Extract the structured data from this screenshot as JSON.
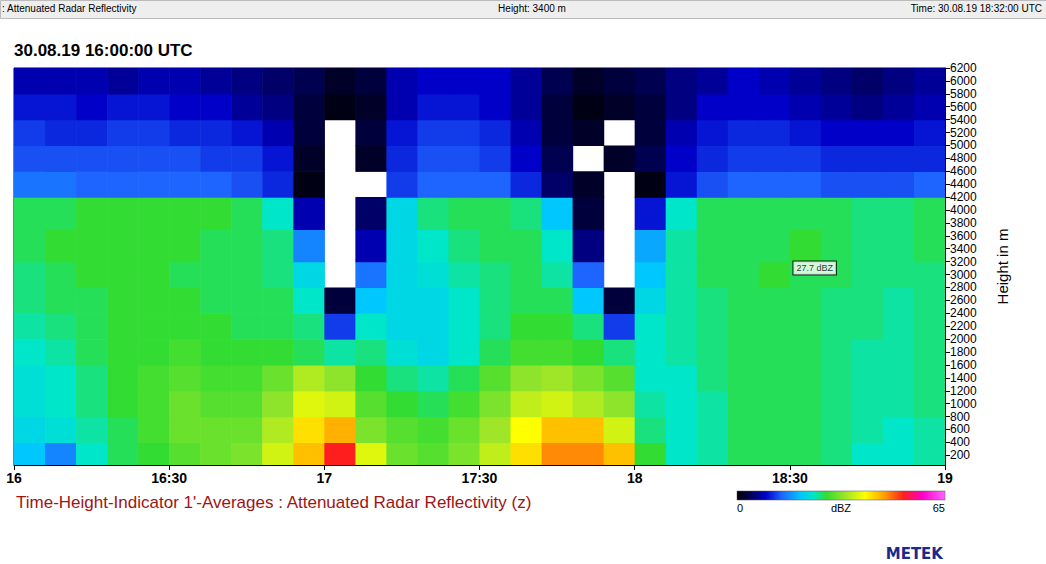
{
  "chart_data": {
    "type": "heatmap",
    "header": [
      ": Attenuated Radar Reflectivity",
      "Height: 3400 m",
      "Time: 30.08.19 18:32:00 UTC"
    ],
    "title": "30.08.19 16:00:00 UTC",
    "caption": "Time-Height-Indicator 1'-Averages : Attenuated Radar Reflectivity (z)",
    "ylabel": "Height in m",
    "brand": "METEK",
    "x_edges": [
      16,
      16.1,
      16.2,
      16.3,
      16.4,
      16.5,
      16.6,
      16.7,
      16.8,
      16.9,
      17,
      17.1,
      17.2,
      17.3,
      17.4,
      17.5,
      17.6,
      17.7,
      17.8,
      17.9,
      18,
      18.1,
      18.2,
      18.3,
      18.4,
      18.5,
      18.6,
      18.7,
      18.8,
      18.9,
      19
    ],
    "y_edges": [
      50,
      400,
      800,
      1200,
      1600,
      2000,
      2400,
      2800,
      3200,
      3700,
      4200,
      4600,
      5000,
      5400,
      5800,
      6200
    ],
    "cells": [
      [
        20,
        16,
        24,
        27,
        28,
        30,
        31,
        32,
        37,
        44,
        52,
        38,
        31,
        30,
        32,
        36,
        42,
        47,
        47,
        44,
        28,
        24,
        25,
        27,
        27,
        27,
        26,
        24,
        24,
        25
      ],
      [
        22,
        23,
        25,
        27,
        29,
        31,
        31,
        31,
        35,
        42,
        45,
        32,
        30,
        29,
        31,
        34,
        40,
        44,
        44,
        37,
        26,
        24,
        25,
        27,
        27,
        27,
        26,
        25,
        24,
        25
      ],
      [
        23,
        24,
        26,
        28,
        29,
        31,
        30,
        30,
        33,
        38,
        37,
        30,
        28,
        27,
        29,
        32,
        36,
        37,
        35,
        33,
        25,
        24,
        25,
        27,
        27,
        27,
        26,
        25,
        25,
        26
      ],
      [
        23,
        24,
        26,
        28,
        29,
        30,
        29,
        29,
        31,
        35,
        33,
        28,
        26,
        25,
        27,
        30,
        33,
        34,
        32,
        30,
        24,
        24,
        26,
        27,
        27,
        27,
        26,
        25,
        25,
        26
      ],
      [
        24,
        25,
        27,
        28,
        28,
        29,
        28,
        28,
        28,
        27,
        25,
        26,
        23,
        22,
        24,
        27,
        29,
        29,
        28,
        26,
        24,
        25,
        26,
        27,
        27,
        27,
        26,
        25,
        25,
        26
      ],
      [
        25,
        26,
        27,
        28,
        28,
        28,
        28,
        27,
        27,
        26,
        12,
        24,
        22,
        22,
        24,
        26,
        28,
        28,
        26,
        12,
        24,
        25,
        26,
        27,
        27,
        27,
        26,
        26,
        25,
        26
      ],
      [
        26,
        27,
        27,
        28,
        28,
        28,
        27,
        27,
        27,
        24,
        3,
        20,
        22,
        22,
        24,
        26,
        27,
        27,
        20,
        3,
        22,
        25,
        26,
        27,
        27,
        27,
        26,
        26,
        25,
        26
      ],
      [
        26,
        27,
        28,
        28,
        28,
        27,
        27,
        27,
        26,
        22,
        null,
        15,
        22,
        23,
        25,
        26,
        27,
        25,
        14,
        null,
        20,
        25,
        27,
        27,
        28,
        27,
        27,
        26,
        26,
        26
      ],
      [
        27,
        28,
        28,
        28,
        28,
        28,
        27,
        27,
        26,
        16,
        null,
        8,
        22,
        24,
        26,
        27,
        27,
        24,
        6,
        null,
        18,
        25,
        27,
        27,
        27,
        28,
        27,
        26,
        26,
        27
      ],
      [
        27,
        27,
        28,
        28,
        28,
        28,
        28,
        27,
        24,
        8,
        null,
        5,
        22,
        26,
        27,
        27,
        26,
        20,
        3,
        null,
        10,
        24,
        27,
        27,
        27,
        27,
        27,
        26,
        26,
        27
      ],
      [
        15,
        15,
        14,
        14,
        14,
        14,
        14,
        13,
        11,
        1,
        null,
        null,
        12,
        14,
        14,
        14,
        11,
        5,
        2,
        null,
        1,
        10,
        13,
        14,
        14,
        14,
        13,
        13,
        13,
        14
      ],
      [
        13,
        13,
        13,
        13,
        13,
        13,
        12,
        12,
        10,
        2,
        null,
        2,
        11,
        13,
        13,
        12,
        9,
        4,
        null,
        2,
        4,
        9,
        11,
        12,
        12,
        12,
        11,
        11,
        11,
        11
      ],
      [
        12,
        11,
        11,
        12,
        12,
        11,
        11,
        10,
        8,
        3,
        null,
        3,
        10,
        12,
        12,
        11,
        8,
        3,
        2,
        null,
        3,
        8,
        10,
        11,
        11,
        10,
        9,
        9,
        9,
        10
      ],
      [
        10,
        10,
        9,
        10,
        10,
        9,
        9,
        7,
        6,
        3,
        1,
        2,
        8,
        10,
        10,
        9,
        7,
        3,
        1,
        2,
        3,
        6,
        9,
        9,
        9,
        8,
        7,
        6,
        7,
        8
      ],
      [
        8,
        8,
        8,
        7,
        8,
        8,
        7,
        6,
        5,
        4,
        2,
        3,
        8,
        9,
        9,
        9,
        7,
        4,
        2,
        3,
        4,
        6,
        7,
        9,
        8,
        7,
        6,
        5,
        6,
        7
      ]
    ],
    "xlim": [
      16,
      19
    ],
    "xticks": [
      16,
      {
        "value": 16.5,
        "label": "16:30"
      },
      17,
      {
        "value": 17.5,
        "label": "17:30"
      },
      18,
      {
        "value": 18.5,
        "label": "18:30"
      },
      19
    ],
    "ylim": [
      50,
      6200
    ],
    "yticks": [
      200,
      400,
      600,
      800,
      1000,
      1200,
      1400,
      1600,
      1800,
      2000,
      2200,
      2400,
      2600,
      2800,
      3000,
      3200,
      3400,
      3600,
      3800,
      4000,
      4200,
      4400,
      4600,
      4800,
      5000,
      5200,
      5400,
      5600,
      5800,
      6000,
      6200
    ],
    "colorbar": {
      "range": [
        0,
        65
      ],
      "ticks": [
        0,
        65
      ],
      "label": "dBZ"
    },
    "annotations": [
      {
        "text": "27.7 dBZ",
        "x": 18.58,
        "y": 3100
      }
    ],
    "grid": false
  }
}
